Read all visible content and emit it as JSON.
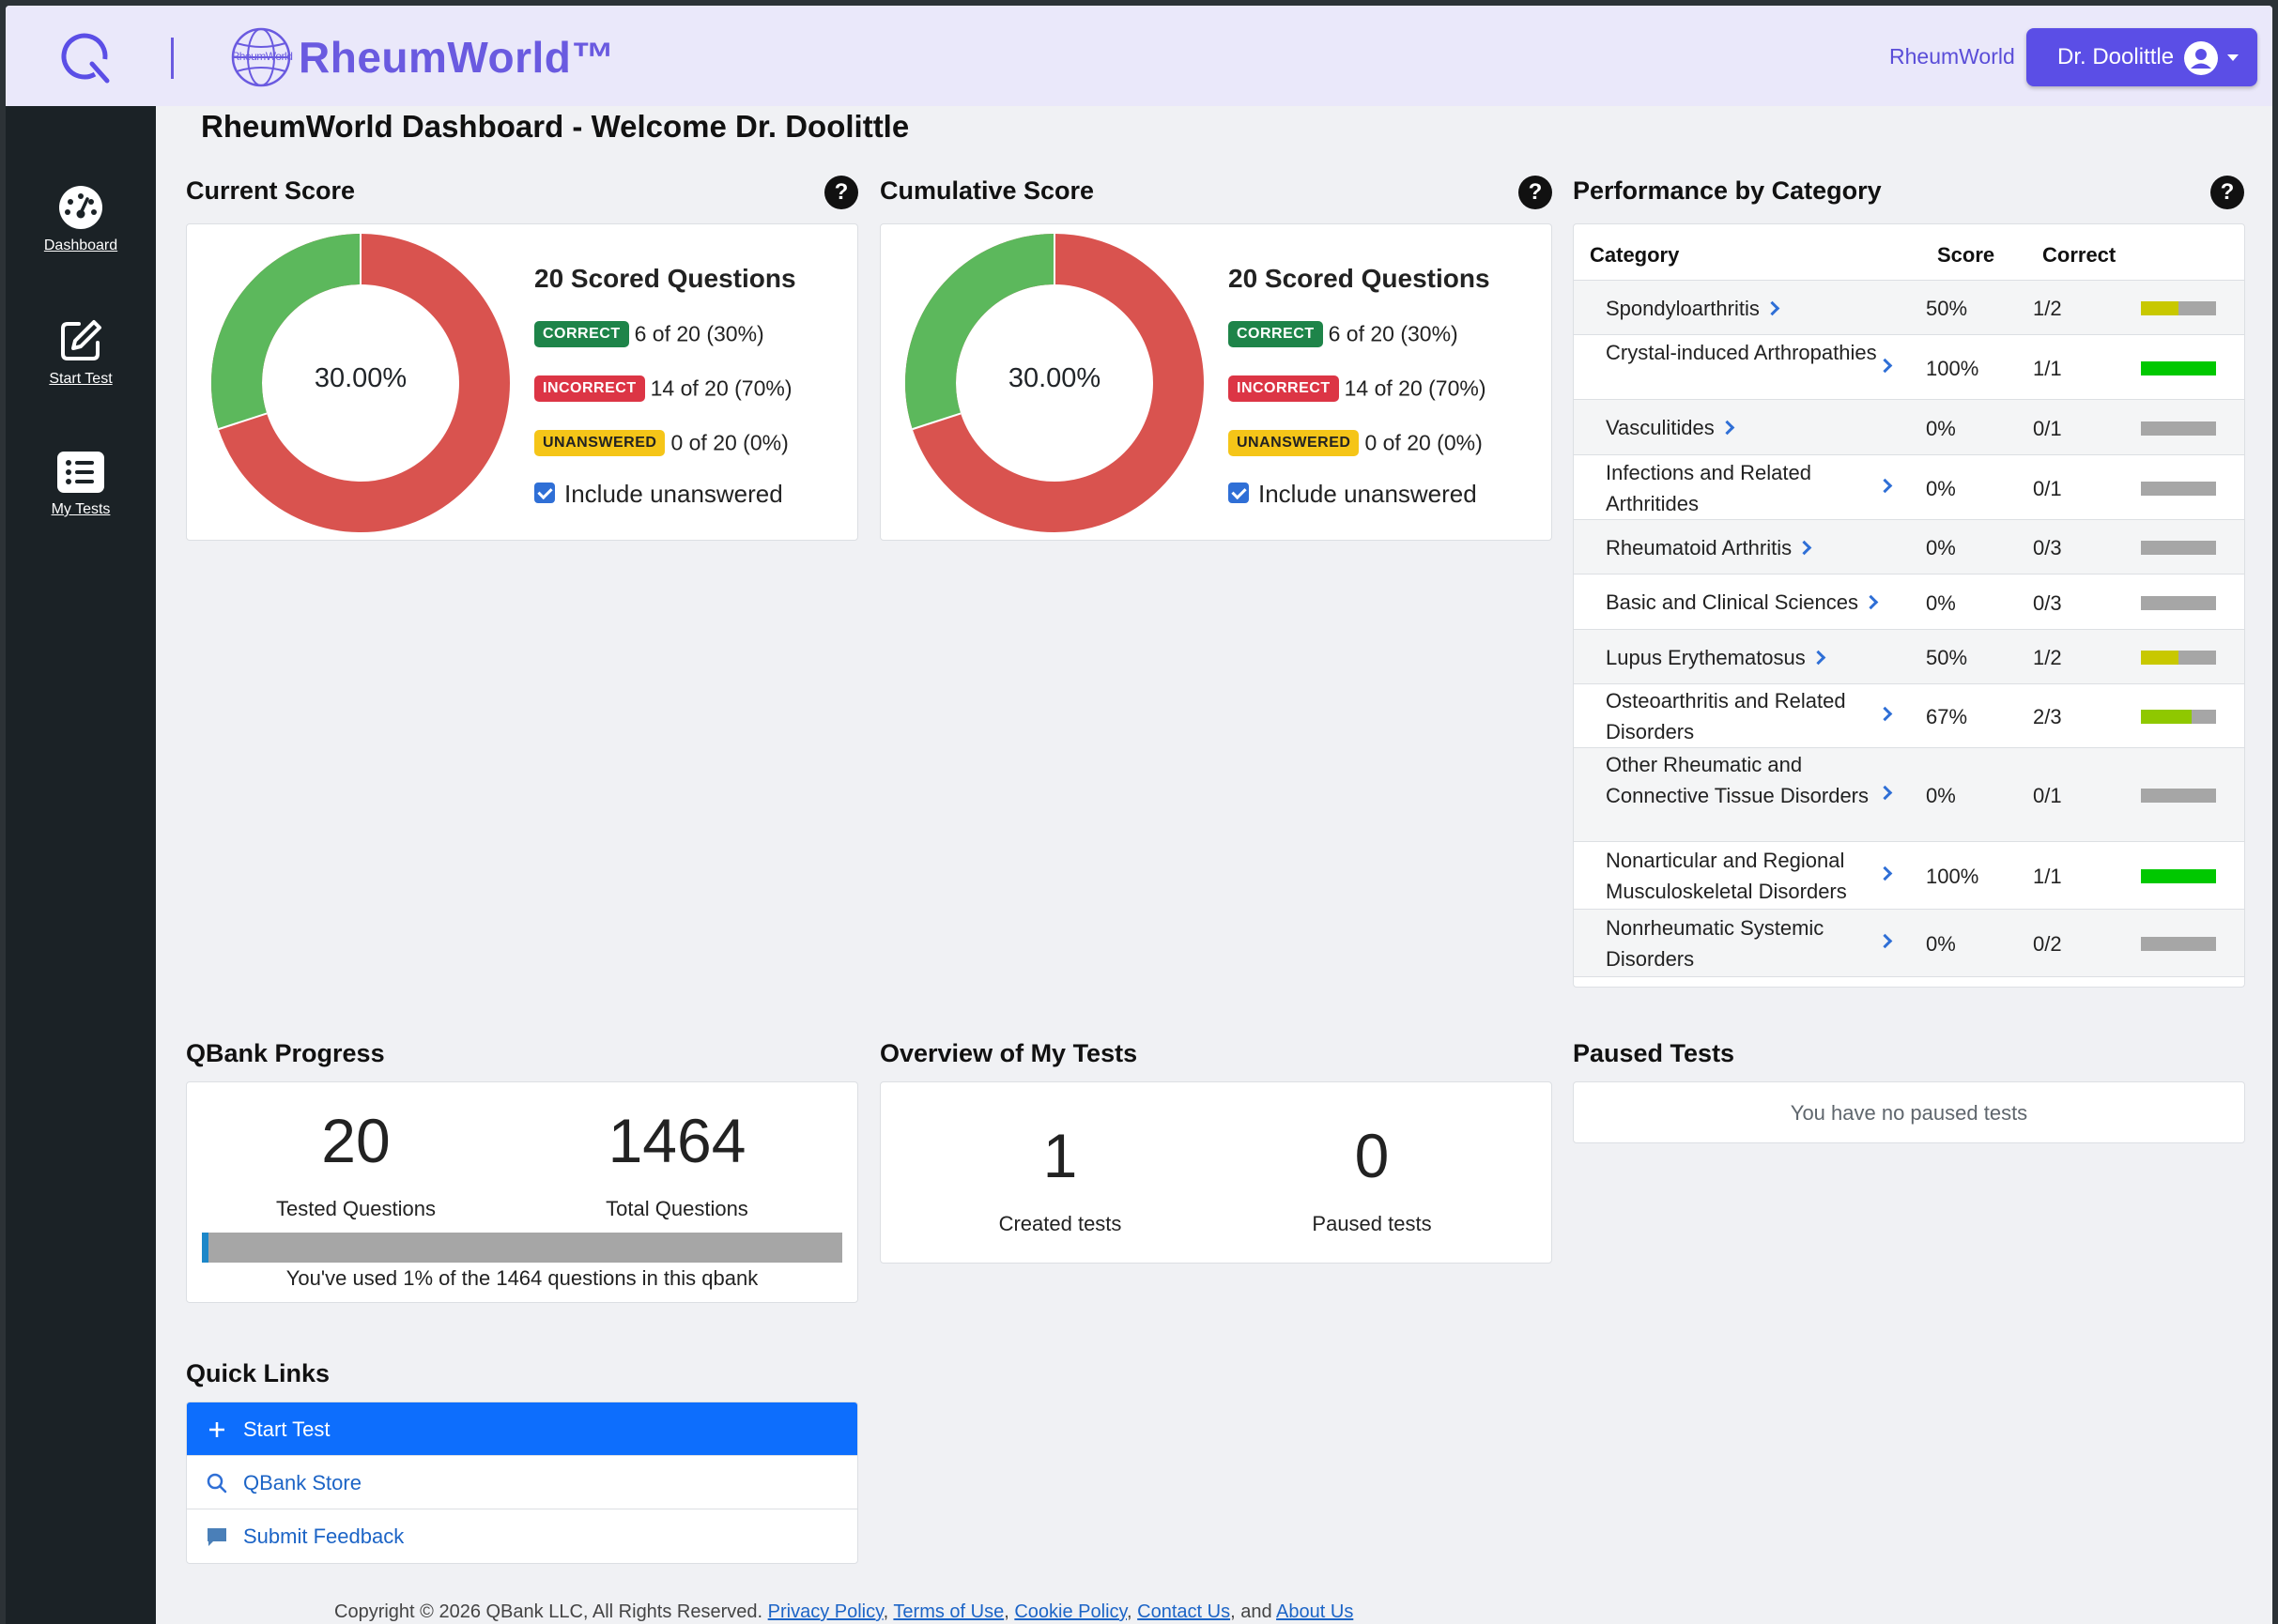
{
  "brand": {
    "mini_text": "RheumWorld",
    "name": "RheumWorld™"
  },
  "header": {
    "link": "RheumWorld",
    "user_name": "Dr. Doolittle"
  },
  "sidebar": {
    "items": [
      {
        "label": "Dashboard",
        "icon": "dashboard-gauge-icon"
      },
      {
        "label": "Start Test",
        "icon": "edit-pencil-icon"
      },
      {
        "label": "My Tests",
        "icon": "list-icon"
      }
    ]
  },
  "page_title": "RheumWorld Dashboard - Welcome Dr. Doolittle",
  "colors": {
    "accent": "#6a5ae0",
    "correct": "#5cb85c",
    "incorrect": "#d9534f",
    "bar_empty": "#a6a6a6"
  },
  "current_score": {
    "title": "Current Score",
    "help": "?",
    "percent_label": "30.00%",
    "heading": "20 Scored Questions",
    "correct_badge": "CORRECT",
    "correct_text": "6 of 20 (30%)",
    "incorrect_badge": "INCORRECT",
    "incorrect_text": "14 of 20 (70%)",
    "unanswered_badge": "UNANSWERED",
    "unanswered_text": "0 of 20 (0%)",
    "checkbox_label": "Include unanswered",
    "correct_fraction": 0.3
  },
  "cumulative_score": {
    "title": "Cumulative Score",
    "help": "?",
    "percent_label": "30.00%",
    "heading": "20 Scored Questions",
    "correct_badge": "CORRECT",
    "correct_text": "6 of 20 (30%)",
    "incorrect_badge": "INCORRECT",
    "incorrect_text": "14 of 20 (70%)",
    "unanswered_badge": "UNANSWERED",
    "unanswered_text": "0 of 20 (0%)",
    "checkbox_label": "Include unanswered",
    "correct_fraction": 0.3
  },
  "performance": {
    "title": "Performance by Category",
    "help": "?",
    "columns": [
      "Category",
      "Score",
      "Correct"
    ],
    "rows": [
      {
        "category": "Spondyloarthritis",
        "score": "50%",
        "correct": "1/2",
        "fraction": 0.5,
        "color": "#c8c800"
      },
      {
        "category": "Crystal-induced Arthropathies",
        "score": "100%",
        "correct": "1/1",
        "fraction": 1.0,
        "color": "#00c800"
      },
      {
        "category": "Vasculitides",
        "score": "0%",
        "correct": "0/1",
        "fraction": 0,
        "color": "#c8c800"
      },
      {
        "category": "Infections and Related Arthritides",
        "score": "0%",
        "correct": "0/1",
        "fraction": 0,
        "color": "#c8c800"
      },
      {
        "category": "Rheumatoid Arthritis",
        "score": "0%",
        "correct": "0/3",
        "fraction": 0,
        "color": "#c8c800"
      },
      {
        "category": "Basic and Clinical Sciences",
        "score": "0%",
        "correct": "0/3",
        "fraction": 0,
        "color": "#c8c800"
      },
      {
        "category": "Lupus Erythematosus",
        "score": "50%",
        "correct": "1/2",
        "fraction": 0.5,
        "color": "#c8c800"
      },
      {
        "category": "Osteoarthritis and Related Disorders",
        "score": "67%",
        "correct": "2/3",
        "fraction": 0.67,
        "color": "#8fc800"
      },
      {
        "category": "Other Rheumatic and Connective Tissue Disorders",
        "score": "0%",
        "correct": "0/1",
        "fraction": 0,
        "color": "#c8c800"
      },
      {
        "category": "Nonarticular and Regional Musculoskeletal Disorders",
        "score": "100%",
        "correct": "1/1",
        "fraction": 1.0,
        "color": "#00c800"
      },
      {
        "category": "Nonrheumatic Systemic Disorders",
        "score": "0%",
        "correct": "0/2",
        "fraction": 0,
        "color": "#c8c800"
      }
    ]
  },
  "qbank_progress": {
    "title": "QBank Progress",
    "tested_value": "20",
    "tested_label": "Tested Questions",
    "total_value": "1464",
    "total_label": "Total Questions",
    "used_fraction": 0.01,
    "note": "You've used 1% of the 1464 questions in this qbank"
  },
  "overview": {
    "title": "Overview of My Tests",
    "created_value": "1",
    "created_label": "Created tests",
    "paused_value": "0",
    "paused_label": "Paused tests"
  },
  "paused_tests": {
    "title": "Paused Tests",
    "empty_message": "You have no paused tests"
  },
  "quick_links": {
    "title": "Quick Links",
    "items": [
      {
        "label": "Start Test",
        "icon": "plus-icon"
      },
      {
        "label": "QBank Store",
        "icon": "search-icon"
      },
      {
        "label": "Submit Feedback",
        "icon": "chat-bubble-icon"
      }
    ]
  },
  "footer": {
    "copyright": "Copyright © 2026 QBank LLC, All Rights Reserved.",
    "privacy": "Privacy Policy",
    "terms": "Terms of Use",
    "cookie": "Cookie Policy",
    "contact": "Contact Us",
    "and": "and",
    "about": "About Us"
  }
}
